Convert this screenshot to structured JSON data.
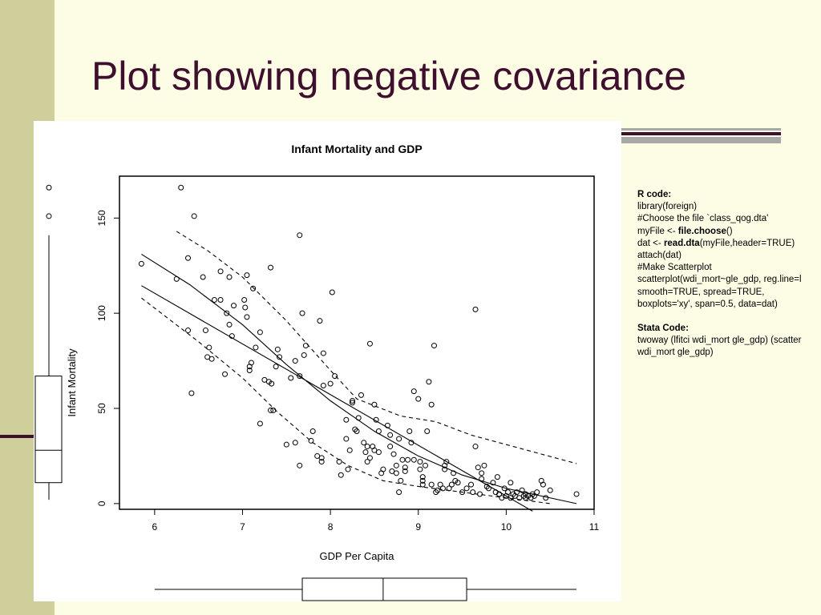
{
  "slide": {
    "title": "Plot showing negative covariance",
    "colors": {
      "title": "#3f0f2e",
      "band": "#cfcf9c",
      "background": "#fdfde6",
      "accent": "#3f0f2e",
      "bar_gray": "#a8a8a8"
    }
  },
  "code_panel": {
    "r_heading": "R code:",
    "r_lines": [
      {
        "parts": [
          {
            "text": "library(foreign)",
            "bold": false
          }
        ]
      },
      {
        "parts": [
          {
            "text": "#Choose the file `class_qog.dta'",
            "bold": false
          }
        ]
      },
      {
        "parts": [
          {
            "text": "myFile <- ",
            "bold": false
          },
          {
            "text": "file.choose",
            "bold": true
          },
          {
            "text": "()",
            "bold": false
          }
        ]
      },
      {
        "parts": [
          {
            "text": "dat  <- ",
            "bold": false
          },
          {
            "text": "read.dta",
            "bold": true
          },
          {
            "text": "(myFile,header=TRUE)",
            "bold": false
          }
        ]
      },
      {
        "parts": [
          {
            "text": "attach(dat)",
            "bold": false
          }
        ]
      },
      {
        "parts": [
          {
            "text": "#Make Scatterplot",
            "bold": false
          }
        ]
      },
      {
        "parts": [
          {
            "text": "scatterplot(wdi_mort~gle_gdp, reg.line=l",
            "bold": false
          }
        ]
      },
      {
        "parts": [
          {
            "text": "smooth=TRUE, spread=TRUE,",
            "bold": false
          }
        ]
      },
      {
        "parts": [
          {
            "text": "boxplots='xy', span=0.5, data=dat)",
            "bold": false
          }
        ]
      }
    ],
    "stata_heading": "Stata Code:",
    "stata_lines": [
      "twoway (lfitci wdi_mort gle_gdp) (scatter",
      "wdi_mort gle_gdp)"
    ]
  },
  "chart_data": {
    "type": "scatter",
    "title": "Infant Mortality and GDP",
    "xlabel": "GDP Per Capita",
    "ylabel": "Infant Mortality",
    "xlim": [
      5.6,
      11
    ],
    "ylim": [
      -3,
      172
    ],
    "xticks": [
      6,
      7,
      8,
      9,
      10,
      11
    ],
    "yticks": [
      0,
      50,
      100,
      150
    ],
    "grid": false,
    "points": [
      [
        5.85,
        126
      ],
      [
        6.25,
        118
      ],
      [
        6.3,
        166
      ],
      [
        6.38,
        129
      ],
      [
        6.38,
        91
      ],
      [
        6.42,
        58
      ],
      [
        6.45,
        151
      ],
      [
        6.55,
        119
      ],
      [
        6.58,
        91
      ],
      [
        6.6,
        77
      ],
      [
        6.62,
        82
      ],
      [
        6.65,
        76
      ],
      [
        6.68,
        107
      ],
      [
        6.75,
        107
      ],
      [
        6.75,
        122
      ],
      [
        6.8,
        68
      ],
      [
        6.82,
        100
      ],
      [
        6.85,
        119
      ],
      [
        6.85,
        94
      ],
      [
        6.88,
        88
      ],
      [
        6.9,
        104
      ],
      [
        7.02,
        107
      ],
      [
        7.03,
        103
      ],
      [
        7.05,
        98
      ],
      [
        7.05,
        120
      ],
      [
        7.08,
        72
      ],
      [
        7.08,
        70
      ],
      [
        7.1,
        74
      ],
      [
        7.12,
        113
      ],
      [
        7.15,
        82
      ],
      [
        7.2,
        90
      ],
      [
        7.2,
        42
      ],
      [
        7.25,
        65
      ],
      [
        7.3,
        64
      ],
      [
        7.32,
        124
      ],
      [
        7.32,
        49
      ],
      [
        7.33,
        63
      ],
      [
        7.35,
        49
      ],
      [
        7.38,
        72
      ],
      [
        7.4,
        81
      ],
      [
        7.42,
        77
      ],
      [
        7.5,
        31
      ],
      [
        7.55,
        66
      ],
      [
        7.6,
        75
      ],
      [
        7.6,
        32
      ],
      [
        7.65,
        141
      ],
      [
        7.65,
        20
      ],
      [
        7.65,
        67
      ],
      [
        7.68,
        100
      ],
      [
        7.7,
        78
      ],
      [
        7.72,
        83
      ],
      [
        7.78,
        33
      ],
      [
        7.8,
        38
      ],
      [
        7.85,
        25
      ],
      [
        7.88,
        96
      ],
      [
        7.9,
        22
      ],
      [
        7.9,
        24
      ],
      [
        7.92,
        79
      ],
      [
        7.92,
        62
      ],
      [
        8.0,
        63
      ],
      [
        8.02,
        111
      ],
      [
        8.05,
        67
      ],
      [
        8.1,
        22
      ],
      [
        8.12,
        15
      ],
      [
        8.18,
        44
      ],
      [
        8.18,
        34
      ],
      [
        8.2,
        18
      ],
      [
        8.22,
        28
      ],
      [
        8.25,
        54
      ],
      [
        8.25,
        53
      ],
      [
        8.28,
        39
      ],
      [
        8.3,
        38
      ],
      [
        8.32,
        45
      ],
      [
        8.35,
        57
      ],
      [
        8.38,
        32
      ],
      [
        8.4,
        27
      ],
      [
        8.42,
        22
      ],
      [
        8.42,
        30
      ],
      [
        8.45,
        24
      ],
      [
        8.45,
        84
      ],
      [
        8.48,
        30
      ],
      [
        8.5,
        28
      ],
      [
        8.5,
        52
      ],
      [
        8.52,
        44
      ],
      [
        8.55,
        38
      ],
      [
        8.55,
        27
      ],
      [
        8.58,
        16
      ],
      [
        8.6,
        18
      ],
      [
        8.65,
        41
      ],
      [
        8.68,
        36
      ],
      [
        8.68,
        30
      ],
      [
        8.7,
        17
      ],
      [
        8.72,
        26
      ],
      [
        8.75,
        16
      ],
      [
        8.75,
        20
      ],
      [
        8.78,
        34
      ],
      [
        8.78,
        6
      ],
      [
        8.8,
        12
      ],
      [
        8.82,
        23
      ],
      [
        8.85,
        19
      ],
      [
        8.85,
        17
      ],
      [
        8.88,
        23
      ],
      [
        8.9,
        38
      ],
      [
        8.92,
        32
      ],
      [
        8.95,
        59
      ],
      [
        8.95,
        23
      ],
      [
        9.0,
        55
      ],
      [
        9.02,
        22
      ],
      [
        9.02,
        18
      ],
      [
        9.05,
        12
      ],
      [
        9.05,
        10
      ],
      [
        9.05,
        14
      ],
      [
        9.08,
        20
      ],
      [
        9.1,
        38
      ],
      [
        9.12,
        64
      ],
      [
        9.15,
        52
      ],
      [
        9.15,
        10
      ],
      [
        9.18,
        83
      ],
      [
        9.2,
        6
      ],
      [
        9.22,
        7
      ],
      [
        9.25,
        10
      ],
      [
        9.28,
        8
      ],
      [
        9.3,
        18
      ],
      [
        9.3,
        20
      ],
      [
        9.32,
        22
      ],
      [
        9.35,
        8
      ],
      [
        9.38,
        10
      ],
      [
        9.4,
        16
      ],
      [
        9.42,
        12
      ],
      [
        9.45,
        11
      ],
      [
        9.5,
        6
      ],
      [
        9.55,
        8
      ],
      [
        9.6,
        10
      ],
      [
        9.62,
        6
      ],
      [
        9.65,
        30
      ],
      [
        9.65,
        102
      ],
      [
        9.68,
        19
      ],
      [
        9.7,
        5
      ],
      [
        9.72,
        13
      ],
      [
        9.72,
        16
      ],
      [
        9.75,
        20
      ],
      [
        9.78,
        9
      ],
      [
        9.8,
        8
      ],
      [
        9.85,
        11
      ],
      [
        9.88,
        6
      ],
      [
        9.9,
        14
      ],
      [
        9.92,
        5
      ],
      [
        9.95,
        3
      ],
      [
        9.98,
        8
      ],
      [
        10.0,
        4
      ],
      [
        10.02,
        6
      ],
      [
        10.05,
        11
      ],
      [
        10.05,
        3
      ],
      [
        10.08,
        5
      ],
      [
        10.1,
        4
      ],
      [
        10.12,
        6
      ],
      [
        10.15,
        3
      ],
      [
        10.18,
        7
      ],
      [
        10.2,
        4
      ],
      [
        10.22,
        3
      ],
      [
        10.22,
        5
      ],
      [
        10.25,
        4
      ],
      [
        10.28,
        3
      ],
      [
        10.3,
        5
      ],
      [
        10.32,
        4
      ],
      [
        10.35,
        6
      ],
      [
        10.4,
        12
      ],
      [
        10.42,
        10
      ],
      [
        10.45,
        3
      ],
      [
        10.5,
        7
      ],
      [
        10.8,
        5
      ]
    ],
    "lines": {
      "regression": [
        [
          5.85,
          114.5
        ],
        [
          10.3,
          -4
        ]
      ],
      "smooth": [
        [
          5.85,
          131
        ],
        [
          6.4,
          115
        ],
        [
          7.0,
          94
        ],
        [
          7.5,
          73
        ],
        [
          8.0,
          54
        ],
        [
          8.5,
          38
        ],
        [
          9.0,
          25
        ],
        [
          9.5,
          15
        ],
        [
          10.0,
          8
        ],
        [
          10.8,
          0
        ]
      ],
      "spread_upper": [
        [
          6.25,
          143
        ],
        [
          6.6,
          133
        ],
        [
          7.0,
          119
        ],
        [
          7.5,
          96
        ],
        [
          8.0,
          70
        ],
        [
          8.3,
          55
        ],
        [
          8.8,
          46
        ],
        [
          9.2,
          43
        ],
        [
          9.6,
          36
        ],
        [
          10.0,
          31
        ],
        [
          10.8,
          21
        ]
      ],
      "spread_lower": [
        [
          5.85,
          108
        ],
        [
          6.5,
          85
        ],
        [
          7.0,
          66
        ],
        [
          7.4,
          48
        ],
        [
          7.8,
          32
        ],
        [
          8.2,
          20
        ],
        [
          8.6,
          12
        ],
        [
          9.0,
          9
        ],
        [
          9.5,
          6
        ],
        [
          10.0,
          3
        ],
        [
          10.5,
          0
        ]
      ]
    },
    "boxplot_x": {
      "whisker_low": 6.0,
      "q1": 7.68,
      "median": 8.6,
      "q3": 9.55,
      "whisker_high": 10.8
    },
    "boxplot_y": {
      "whisker_low": 2,
      "q1": 11,
      "median": 28,
      "q3": 67,
      "whisker_high": 141,
      "outliers": [
        151,
        166
      ]
    }
  }
}
